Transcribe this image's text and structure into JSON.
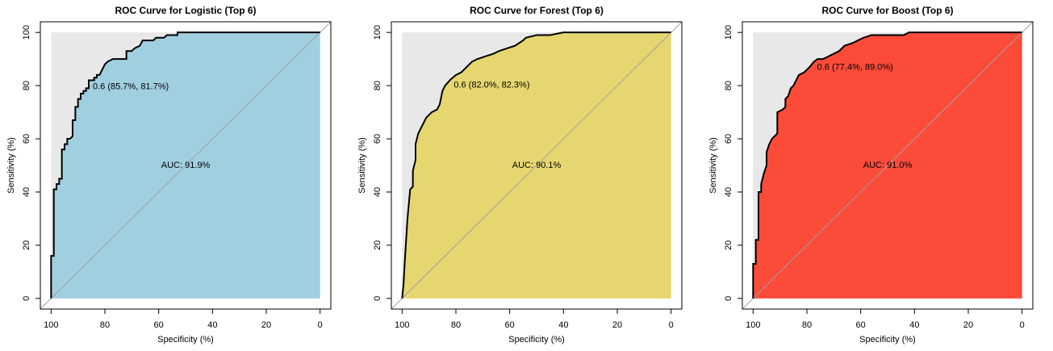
{
  "chart_data": [
    {
      "type": "area",
      "title": "ROC Curve for Logistic (Top 6)",
      "xlabel": "Specificity (%)",
      "ylabel": "Sensitivity (%)",
      "x": [
        100,
        100,
        99,
        99,
        98,
        98,
        97,
        97,
        96,
        96,
        95,
        95,
        94,
        94,
        93,
        92,
        92,
        91,
        91,
        90,
        90,
        89,
        89,
        88,
        88,
        87,
        87,
        86,
        86,
        84,
        84,
        83,
        83,
        82,
        81,
        80,
        79,
        77,
        72,
        72,
        70,
        69,
        67,
        66,
        62,
        61,
        58,
        57,
        53,
        53,
        0
      ],
      "values": [
        0,
        16,
        16,
        41,
        41,
        43,
        43,
        45,
        45,
        56,
        56,
        58,
        58,
        60,
        60,
        61,
        67,
        67,
        72,
        72,
        75,
        75,
        77,
        77,
        78,
        78,
        79,
        79,
        82,
        82,
        83,
        83,
        84,
        84,
        86,
        88,
        89,
        90,
        90,
        93,
        93,
        94,
        95,
        97,
        97,
        98,
        98,
        99,
        99,
        100,
        100
      ],
      "color": "#a0cfe0",
      "background_color": "#e8e8e8",
      "diagonal_color": "#a0a0a0",
      "xlim": [
        104,
        -4
      ],
      "ylim": [
        -4,
        104
      ],
      "xticks": [
        100,
        80,
        60,
        40,
        20,
        0
      ],
      "yticks": [
        0,
        20,
        40,
        60,
        80,
        100
      ],
      "threshold": {
        "text": "0.6 (85.7%, 81.7%)",
        "x": 85.7,
        "y": 81.7
      },
      "auc_text": "AUC: 91.9%"
    },
    {
      "type": "area",
      "title": "ROC Curve for Forest (Top 6)",
      "xlabel": "Specificity (%)",
      "ylabel": "Sensitivity (%)",
      "x": [
        100,
        99.5,
        99,
        98,
        97,
        96,
        96,
        95,
        95,
        94,
        93,
        92,
        91,
        89,
        87,
        86,
        85,
        84,
        82,
        80,
        78,
        76,
        74,
        72,
        69,
        66,
        64,
        61,
        58,
        55,
        54,
        50,
        45,
        40,
        0
      ],
      "values": [
        0,
        5,
        14,
        30,
        41,
        42,
        48,
        52,
        58,
        62,
        64,
        66,
        68,
        70,
        71,
        73,
        78,
        80,
        82.3,
        84,
        85,
        87,
        89,
        90,
        91,
        92,
        93,
        94,
        95,
        97,
        98,
        99,
        99,
        100,
        100
      ],
      "color": "#e6d670",
      "background_color": "#e8e8e8",
      "diagonal_color": "#a0a0a0",
      "xlim": [
        104,
        -4
      ],
      "ylim": [
        -4,
        104
      ],
      "xticks": [
        100,
        80,
        60,
        40,
        20,
        0
      ],
      "yticks": [
        0,
        20,
        40,
        60,
        80,
        100
      ],
      "threshold": {
        "text": "0.6 (82.0%, 82.3%)",
        "x": 82.0,
        "y": 82.3
      },
      "auc_text": "AUC: 90.1%"
    },
    {
      "type": "area",
      "title": "ROC Curve for Boost (Top 6)",
      "xlabel": "Specificity (%)",
      "ylabel": "Sensitivity (%)",
      "x": [
        100,
        100,
        99,
        99,
        98,
        98,
        97,
        97,
        96,
        95,
        95,
        94,
        93,
        92,
        91,
        91,
        89,
        88,
        88,
        87,
        86,
        85,
        84,
        83,
        81,
        80,
        79,
        77.4,
        76,
        74,
        72,
        70,
        68,
        66,
        63,
        61,
        59,
        56,
        44,
        42,
        0
      ],
      "values": [
        0,
        13,
        13,
        22,
        22,
        40,
        40,
        43,
        47,
        50,
        55,
        58,
        60,
        61,
        62,
        70,
        71,
        72,
        75,
        76,
        79,
        80,
        82,
        84,
        85,
        86,
        87,
        89,
        90,
        90,
        91,
        92,
        93,
        95,
        96,
        97,
        98,
        99,
        99,
        100,
        100
      ],
      "color": "#fd4b3a",
      "background_color": "#e8e8e8",
      "diagonal_color": "#a0a0a0",
      "xlim": [
        104,
        -4
      ],
      "ylim": [
        -4,
        104
      ],
      "xticks": [
        100,
        80,
        60,
        40,
        20,
        0
      ],
      "yticks": [
        0,
        20,
        40,
        60,
        80,
        100
      ],
      "threshold": {
        "text": "0.6 (77.4%, 89.0%)",
        "x": 77.4,
        "y": 89.0
      },
      "auc_text": "AUC: 91.0%"
    }
  ]
}
